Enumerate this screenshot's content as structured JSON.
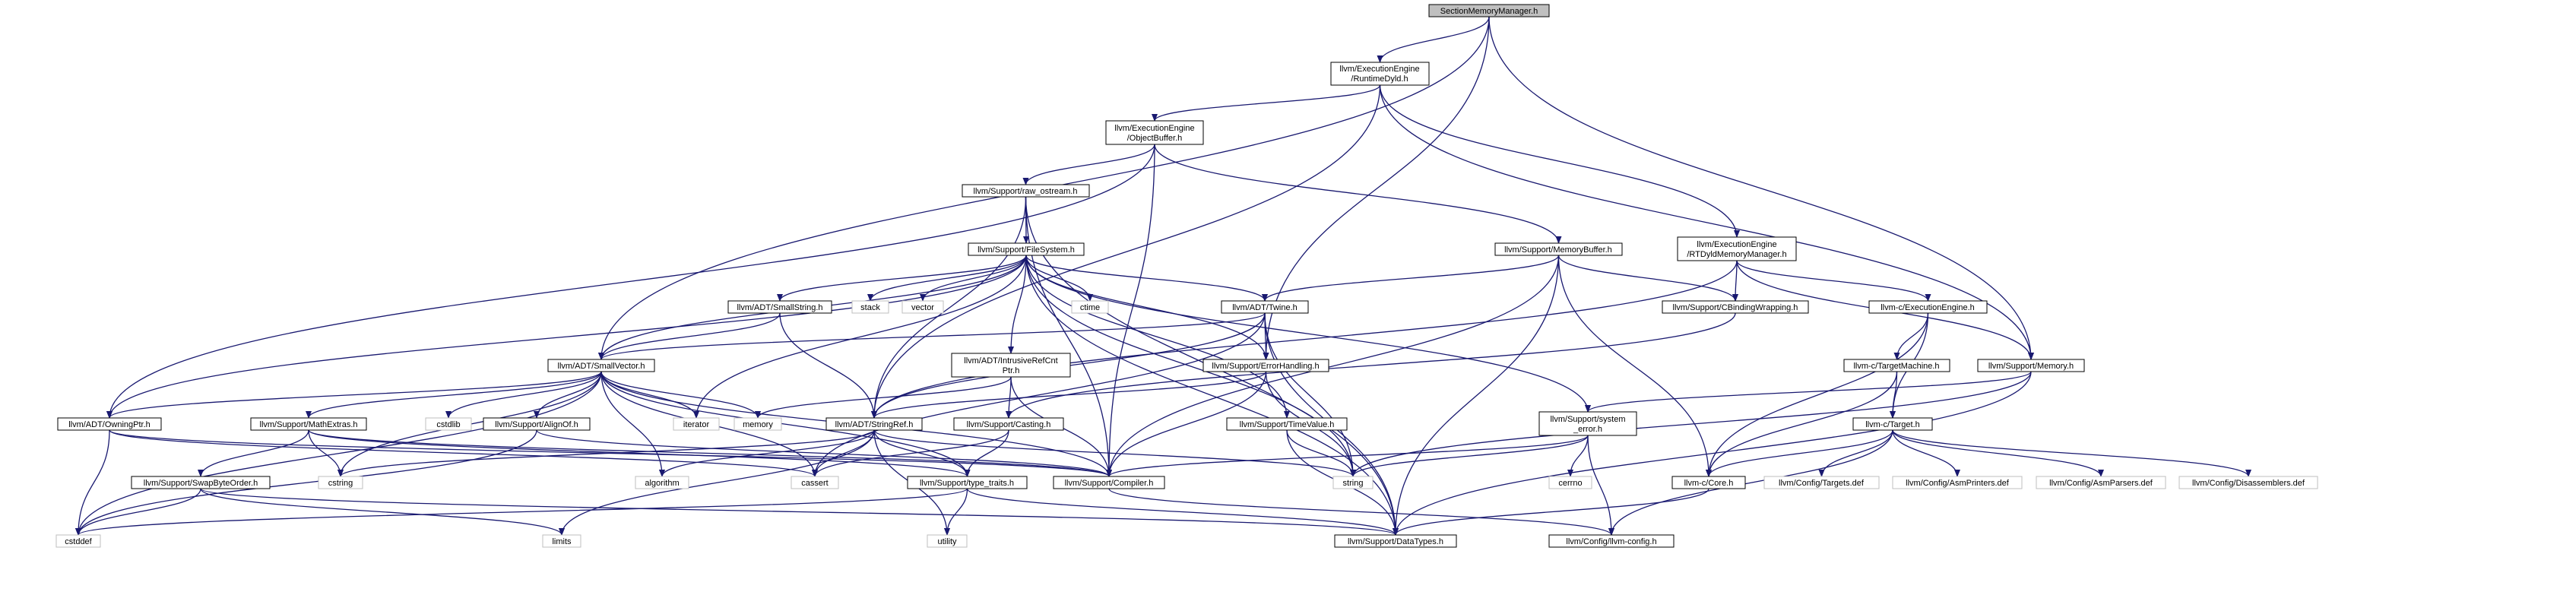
{
  "graph": {
    "nodes": {
      "n_root": {
        "lines": [
          "SectionMemoryManager.h"
        ]
      },
      "n_rtdyld": {
        "lines": [
          "llvm/ExecutionEngine",
          "/RuntimeDyld.h"
        ]
      },
      "n_objbuf": {
        "lines": [
          "llvm/ExecutionEngine",
          "/ObjectBuffer.h"
        ]
      },
      "n_rawostream": {
        "lines": [
          "llvm/Support/raw_ostream.h"
        ]
      },
      "n_fs": {
        "lines": [
          "llvm/Support/FileSystem.h"
        ]
      },
      "n_membuf": {
        "lines": [
          "llvm/Support/MemoryBuffer.h"
        ]
      },
      "n_rtdyldmm": {
        "lines": [
          "llvm/ExecutionEngine",
          "/RTDyldMemoryManager.h"
        ]
      },
      "n_smallstring": {
        "lines": [
          "llvm/ADT/SmallString.h"
        ]
      },
      "n_stack": {
        "lines": [
          "stack"
        ]
      },
      "n_vector": {
        "lines": [
          "vector"
        ]
      },
      "n_ctime": {
        "lines": [
          "ctime"
        ]
      },
      "n_twine": {
        "lines": [
          "llvm/ADT/Twine.h"
        ]
      },
      "n_cbinding": {
        "lines": [
          "llvm/Support/CBindingWrapping.h"
        ]
      },
      "n_cee": {
        "lines": [
          "llvm-c/ExecutionEngine.h"
        ]
      },
      "n_smallvector": {
        "lines": [
          "llvm/ADT/SmallVector.h"
        ]
      },
      "n_intrusive": {
        "lines": [
          "llvm/ADT/IntrusiveRefCnt",
          "Ptr.h"
        ]
      },
      "n_errorhandling": {
        "lines": [
          "llvm/Support/ErrorHandling.h"
        ]
      },
      "n_ctm": {
        "lines": [
          "llvm-c/TargetMachine.h"
        ]
      },
      "n_memory": {
        "lines": [
          "llvm/Support/Memory.h"
        ]
      },
      "n_owningptr": {
        "lines": [
          "llvm/ADT/OwningPtr.h"
        ]
      },
      "n_mathextras": {
        "lines": [
          "llvm/Support/MathExtras.h"
        ]
      },
      "n_cstdlib": {
        "lines": [
          "cstdlib"
        ]
      },
      "n_alignof": {
        "lines": [
          "llvm/Support/AlignOf.h"
        ]
      },
      "n_iterator": {
        "lines": [
          "iterator"
        ]
      },
      "n_memorystd": {
        "lines": [
          "memory"
        ]
      },
      "n_stringref": {
        "lines": [
          "llvm/ADT/StringRef.h"
        ]
      },
      "n_casting": {
        "lines": [
          "llvm/Support/Casting.h"
        ]
      },
      "n_timevalue": {
        "lines": [
          "llvm/Support/TimeValue.h"
        ]
      },
      "n_syserror": {
        "lines": [
          "llvm/Support/system",
          "_error.h"
        ]
      },
      "n_ctarget": {
        "lines": [
          "llvm-c/Target.h"
        ]
      },
      "n_swapbyte": {
        "lines": [
          "llvm/Support/SwapByteOrder.h"
        ]
      },
      "n_cstring": {
        "lines": [
          "cstring"
        ]
      },
      "n_algorithm": {
        "lines": [
          "algorithm"
        ]
      },
      "n_cassert": {
        "lines": [
          "cassert"
        ]
      },
      "n_typetraits": {
        "lines": [
          "llvm/Support/type_traits.h"
        ]
      },
      "n_compiler": {
        "lines": [
          "llvm/Support/Compiler.h"
        ]
      },
      "n_string": {
        "lines": [
          "string"
        ]
      },
      "n_cerrno": {
        "lines": [
          "cerrno"
        ]
      },
      "n_ccore": {
        "lines": [
          "llvm-c/Core.h"
        ]
      },
      "n_targetsdef": {
        "lines": [
          "llvm/Config/Targets.def"
        ]
      },
      "n_asmprinters": {
        "lines": [
          "llvm/Config/AsmPrinters.def"
        ]
      },
      "n_asmparsers": {
        "lines": [
          "llvm/Config/AsmParsers.def"
        ]
      },
      "n_disassemblers": {
        "lines": [
          "llvm/Config/Disassemblers.def"
        ]
      },
      "n_cstddef": {
        "lines": [
          "cstddef"
        ]
      },
      "n_limits": {
        "lines": [
          "limits"
        ]
      },
      "n_utility": {
        "lines": [
          "utility"
        ]
      },
      "n_datatypes": {
        "lines": [
          "llvm/Support/DataTypes.h"
        ]
      },
      "n_llvmconfig": {
        "lines": [
          "llvm/Config/llvm-config.h"
        ]
      }
    },
    "edges": [
      [
        "n_root",
        "n_rtdyld"
      ],
      [
        "n_root",
        "n_smallvector"
      ],
      [
        "n_root",
        "n_errorhandling"
      ],
      [
        "n_root",
        "n_memory"
      ],
      [
        "n_rtdyld",
        "n_objbuf"
      ],
      [
        "n_rtdyld",
        "n_rtdyldmm"
      ],
      [
        "n_rtdyld",
        "n_memory"
      ],
      [
        "n_rtdyld",
        "n_stringref"
      ],
      [
        "n_objbuf",
        "n_rawostream"
      ],
      [
        "n_objbuf",
        "n_membuf"
      ],
      [
        "n_objbuf",
        "n_owningptr"
      ],
      [
        "n_objbuf",
        "n_compiler"
      ],
      [
        "n_rawostream",
        "n_fs"
      ],
      [
        "n_rawostream",
        "n_stringref"
      ],
      [
        "n_rawostream",
        "n_compiler"
      ],
      [
        "n_rawostream",
        "n_datatypes"
      ],
      [
        "n_fs",
        "n_smallstring"
      ],
      [
        "n_fs",
        "n_stack"
      ],
      [
        "n_fs",
        "n_vector"
      ],
      [
        "n_fs",
        "n_ctime"
      ],
      [
        "n_fs",
        "n_twine"
      ],
      [
        "n_fs",
        "n_intrusive"
      ],
      [
        "n_fs",
        "n_errorhandling"
      ],
      [
        "n_fs",
        "n_timevalue"
      ],
      [
        "n_fs",
        "n_syserror"
      ],
      [
        "n_fs",
        "n_iterator"
      ],
      [
        "n_fs",
        "n_datatypes"
      ],
      [
        "n_fs",
        "n_string"
      ],
      [
        "n_fs",
        "n_owningptr"
      ],
      [
        "n_fs",
        "n_smallvector"
      ],
      [
        "n_membuf",
        "n_twine"
      ],
      [
        "n_membuf",
        "n_cbinding"
      ],
      [
        "n_membuf",
        "n_ccore"
      ],
      [
        "n_membuf",
        "n_compiler"
      ],
      [
        "n_membuf",
        "n_datatypes"
      ],
      [
        "n_rtdyldmm",
        "n_cbinding"
      ],
      [
        "n_rtdyldmm",
        "n_cee"
      ],
      [
        "n_rtdyldmm",
        "n_memory"
      ],
      [
        "n_rtdyldmm",
        "n_stringref"
      ],
      [
        "n_smallstring",
        "n_smallvector"
      ],
      [
        "n_smallstring",
        "n_stringref"
      ],
      [
        "n_twine",
        "n_stringref"
      ],
      [
        "n_twine",
        "n_errorhandling"
      ],
      [
        "n_twine",
        "n_datatypes"
      ],
      [
        "n_twine",
        "n_string"
      ],
      [
        "n_twine",
        "n_cassert"
      ],
      [
        "n_twine",
        "n_smallvector"
      ],
      [
        "n_cbinding",
        "n_casting"
      ],
      [
        "n_cee",
        "n_ctm"
      ],
      [
        "n_cee",
        "n_ctarget"
      ],
      [
        "n_cee",
        "n_ccore"
      ],
      [
        "n_smallvector",
        "n_owningptr"
      ],
      [
        "n_smallvector",
        "n_mathextras"
      ],
      [
        "n_smallvector",
        "n_cstdlib"
      ],
      [
        "n_smallvector",
        "n_alignof"
      ],
      [
        "n_smallvector",
        "n_iterator"
      ],
      [
        "n_smallvector",
        "n_memorystd"
      ],
      [
        "n_smallvector",
        "n_typetraits"
      ],
      [
        "n_smallvector",
        "n_compiler"
      ],
      [
        "n_smallvector",
        "n_cassert"
      ],
      [
        "n_smallvector",
        "n_cstring"
      ],
      [
        "n_smallvector",
        "n_cstddef"
      ],
      [
        "n_smallvector",
        "n_algorithm"
      ],
      [
        "n_intrusive",
        "n_memorystd"
      ],
      [
        "n_intrusive",
        "n_casting"
      ],
      [
        "n_intrusive",
        "n_compiler"
      ],
      [
        "n_errorhandling",
        "n_stringref"
      ],
      [
        "n_errorhandling",
        "n_compiler"
      ],
      [
        "n_errorhandling",
        "n_string"
      ],
      [
        "n_ctm",
        "n_ctarget"
      ],
      [
        "n_ctm",
        "n_ccore"
      ],
      [
        "n_memory",
        "n_syserror"
      ],
      [
        "n_memory",
        "n_datatypes"
      ],
      [
        "n_memory",
        "n_string"
      ],
      [
        "n_owningptr",
        "n_compiler"
      ],
      [
        "n_owningptr",
        "n_cassert"
      ],
      [
        "n_owningptr",
        "n_cstddef"
      ],
      [
        "n_mathextras",
        "n_swapbyte"
      ],
      [
        "n_mathextras",
        "n_compiler"
      ],
      [
        "n_mathextras",
        "n_typetraits"
      ],
      [
        "n_mathextras",
        "n_cstring"
      ],
      [
        "n_alignof",
        "n_compiler"
      ],
      [
        "n_alignof",
        "n_cstddef"
      ],
      [
        "n_stringref",
        "n_typetraits"
      ],
      [
        "n_stringref",
        "n_algorithm"
      ],
      [
        "n_stringref",
        "n_cassert"
      ],
      [
        "n_stringref",
        "n_cstring"
      ],
      [
        "n_stringref",
        "n_limits"
      ],
      [
        "n_stringref",
        "n_string"
      ],
      [
        "n_stringref",
        "n_utility"
      ],
      [
        "n_casting",
        "n_typetraits"
      ],
      [
        "n_casting",
        "n_cassert"
      ],
      [
        "n_timevalue",
        "n_datatypes"
      ],
      [
        "n_timevalue",
        "n_string"
      ],
      [
        "n_syserror",
        "n_compiler"
      ],
      [
        "n_syserror",
        "n_cerrno"
      ],
      [
        "n_syserror",
        "n_string"
      ],
      [
        "n_syserror",
        "n_llvmconfig"
      ],
      [
        "n_ctarget",
        "n_targetsdef"
      ],
      [
        "n_ctarget",
        "n_asmprinters"
      ],
      [
        "n_ctarget",
        "n_asmparsers"
      ],
      [
        "n_ctarget",
        "n_disassemblers"
      ],
      [
        "n_ctarget",
        "n_llvmconfig"
      ],
      [
        "n_ctarget",
        "n_ccore"
      ],
      [
        "n_swapbyte",
        "n_datatypes"
      ],
      [
        "n_swapbyte",
        "n_cstddef"
      ],
      [
        "n_swapbyte",
        "n_limits"
      ],
      [
        "n_typetraits",
        "n_datatypes"
      ],
      [
        "n_typetraits",
        "n_cstddef"
      ],
      [
        "n_typetraits",
        "n_utility"
      ],
      [
        "n_compiler",
        "n_llvmconfig"
      ],
      [
        "n_ccore",
        "n_datatypes"
      ]
    ]
  },
  "colors": {
    "edge": "#191970",
    "header_border": "#000000",
    "system_border": "#bfbfbf",
    "root_fill": "#bfbfbf",
    "node_fill": "#ffffff"
  }
}
